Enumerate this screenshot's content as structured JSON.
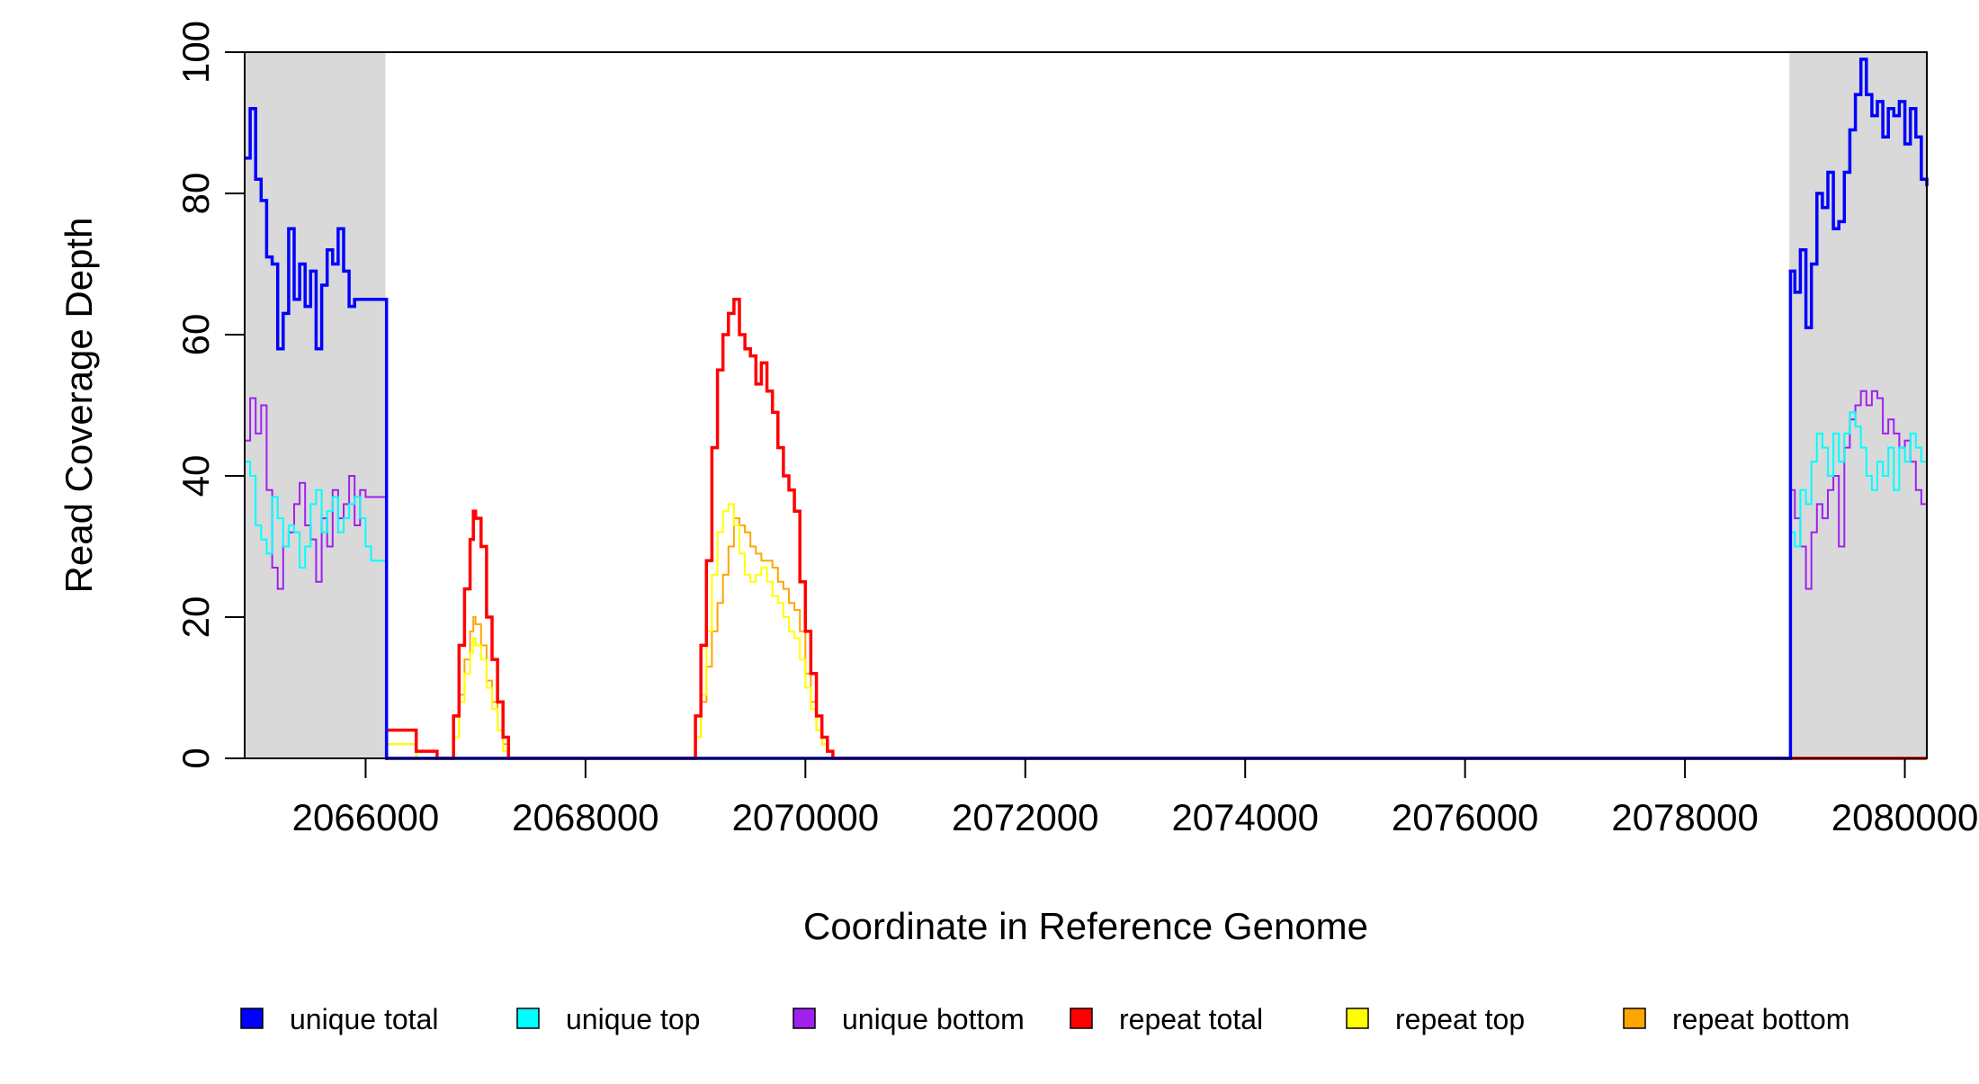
{
  "chart_data": {
    "type": "line",
    "title": "",
    "xlabel": "Coordinate in Reference Genome",
    "ylabel": "Read Coverage Depth",
    "xlim": [
      2064900,
      2080200
    ],
    "ylim": [
      0,
      100
    ],
    "x_ticks": [
      2066000,
      2068000,
      2070000,
      2072000,
      2074000,
      2076000,
      2078000,
      2080000
    ],
    "x_tick_labels": [
      "2066000",
      "2068000",
      "2070000",
      "2072000",
      "2074000",
      "2076000",
      "2078000",
      "2080000"
    ],
    "y_ticks": [
      0,
      20,
      40,
      60,
      80,
      100
    ],
    "y_tick_labels": [
      "0",
      "20",
      "40",
      "60",
      "80",
      "100"
    ],
    "grid": false,
    "legend_position": "bottom",
    "shaded_regions": [
      {
        "x_start": 2064900,
        "x_end": 2066180,
        "color": "#d9d9d9"
      },
      {
        "x_start": 2078950,
        "x_end": 2080200,
        "color": "#d9d9d9"
      }
    ],
    "series": [
      {
        "name": "unique total",
        "color": "#0000ff",
        "x": [
          2064900,
          2064950,
          2065000,
          2065050,
          2065100,
          2065150,
          2065200,
          2065250,
          2065300,
          2065350,
          2065400,
          2065450,
          2065500,
          2065550,
          2065600,
          2065650,
          2065700,
          2065750,
          2065800,
          2065850,
          2065900,
          2065950,
          2066000,
          2066050,
          2066100,
          2066150,
          2066180,
          2066190,
          2078950,
          2078960,
          2079000,
          2079050,
          2079100,
          2079150,
          2079200,
          2079250,
          2079300,
          2079350,
          2079400,
          2079450,
          2079500,
          2079550,
          2079600,
          2079650,
          2079700,
          2079750,
          2079800,
          2079850,
          2079900,
          2079950,
          2080000,
          2080050,
          2080100,
          2080150,
          2080200
        ],
        "values": [
          85,
          92,
          82,
          79,
          71,
          70,
          58,
          63,
          75,
          65,
          70,
          64,
          69,
          58,
          67,
          72,
          70,
          75,
          69,
          64,
          65,
          65,
          65,
          65,
          65,
          65,
          65,
          0,
          0,
          69,
          66,
          72,
          61,
          70,
          80,
          78,
          83,
          75,
          76,
          83,
          89,
          94,
          99,
          94,
          91,
          93,
          88,
          92,
          91,
          93,
          87,
          92,
          88,
          82,
          81
        ]
      },
      {
        "name": "unique top",
        "color": "#00ffff",
        "x": [
          2064900,
          2064950,
          2065000,
          2065050,
          2065100,
          2065150,
          2065200,
          2065250,
          2065300,
          2065350,
          2065400,
          2065450,
          2065500,
          2065550,
          2065600,
          2065650,
          2065700,
          2065750,
          2065800,
          2065850,
          2065900,
          2065950,
          2066000,
          2066050,
          2066100,
          2066150,
          2066180,
          2066190,
          2078950,
          2078960,
          2079000,
          2079050,
          2079100,
          2079150,
          2079200,
          2079250,
          2079300,
          2079350,
          2079400,
          2079450,
          2079500,
          2079550,
          2079600,
          2079650,
          2079700,
          2079750,
          2079800,
          2079850,
          2079900,
          2079950,
          2080000,
          2080050,
          2080100,
          2080150,
          2080200
        ],
        "values": [
          42,
          40,
          33,
          31,
          29,
          37,
          34,
          30,
          33,
          32,
          27,
          30,
          36,
          38,
          32,
          35,
          37,
          32,
          34,
          36,
          37,
          34,
          30,
          28,
          28,
          28,
          28,
          0,
          0,
          32,
          30,
          38,
          36,
          42,
          46,
          44,
          40,
          46,
          42,
          46,
          49,
          47,
          44,
          40,
          38,
          42,
          40,
          44,
          38,
          44,
          42,
          46,
          44,
          42,
          40
        ]
      },
      {
        "name": "unique bottom",
        "color": "#a020f0",
        "x": [
          2064900,
          2064950,
          2065000,
          2065050,
          2065100,
          2065150,
          2065200,
          2065250,
          2065300,
          2065350,
          2065400,
          2065450,
          2065500,
          2065550,
          2065600,
          2065650,
          2065700,
          2065750,
          2065800,
          2065850,
          2065900,
          2065950,
          2066000,
          2066050,
          2066100,
          2066150,
          2066180,
          2066190,
          2078950,
          2078960,
          2079000,
          2079050,
          2079100,
          2079150,
          2079200,
          2079250,
          2079300,
          2079350,
          2079400,
          2079450,
          2079500,
          2079550,
          2079600,
          2079650,
          2079700,
          2079750,
          2079800,
          2079850,
          2079900,
          2079950,
          2080000,
          2080050,
          2080100,
          2080150,
          2080200
        ],
        "values": [
          45,
          51,
          46,
          50,
          38,
          27,
          24,
          30,
          32,
          36,
          39,
          33,
          31,
          25,
          34,
          30,
          38,
          34,
          36,
          40,
          33,
          38,
          37,
          37,
          37,
          37,
          37,
          0,
          0,
          38,
          34,
          30,
          24,
          32,
          36,
          34,
          38,
          40,
          30,
          44,
          48,
          50,
          52,
          50,
          52,
          51,
          46,
          48,
          46,
          44,
          45,
          42,
          38,
          36,
          35
        ]
      },
      {
        "name": "repeat total",
        "color": "#ff0000",
        "x": [
          2066180,
          2066190,
          2066220,
          2066450,
          2066460,
          2066550,
          2066650,
          2066720,
          2066800,
          2066850,
          2066900,
          2066950,
          2066980,
          2067000,
          2067050,
          2067100,
          2067150,
          2067200,
          2067250,
          2067300,
          2067320,
          2068950,
          2069000,
          2069050,
          2069100,
          2069150,
          2069200,
          2069250,
          2069300,
          2069350,
          2069400,
          2069450,
          2069500,
          2069550,
          2069600,
          2069650,
          2069700,
          2069750,
          2069800,
          2069850,
          2069900,
          2069950,
          2070000,
          2070050,
          2070100,
          2070150,
          2070200,
          2070250,
          2070270,
          2070280,
          2080200
        ],
        "values": [
          0,
          4,
          4,
          4,
          1,
          1,
          0,
          0,
          6,
          16,
          24,
          31,
          35,
          34,
          30,
          20,
          14,
          8,
          3,
          0,
          0,
          0,
          6,
          16,
          28,
          44,
          55,
          60,
          63,
          65,
          60,
          58,
          57,
          53,
          56,
          52,
          49,
          44,
          40,
          38,
          35,
          25,
          18,
          12,
          6,
          3,
          1,
          0,
          0,
          0,
          0
        ]
      },
      {
        "name": "repeat top",
        "color": "#ffff00",
        "x": [
          2066180,
          2066190,
          2066220,
          2066450,
          2066460,
          2066550,
          2066650,
          2066720,
          2066800,
          2066850,
          2066900,
          2066950,
          2066980,
          2067000,
          2067050,
          2067100,
          2067150,
          2067200,
          2067250,
          2067300,
          2067320,
          2068950,
          2069000,
          2069050,
          2069100,
          2069150,
          2069200,
          2069250,
          2069300,
          2069350,
          2069400,
          2069450,
          2069500,
          2069550,
          2069600,
          2069650,
          2069700,
          2069750,
          2069800,
          2069850,
          2069900,
          2069950,
          2070000,
          2070050,
          2070100,
          2070150,
          2070200,
          2070250,
          2070270,
          2070280,
          2080200
        ],
        "values": [
          0,
          2,
          2,
          2,
          0,
          0,
          0,
          0,
          3,
          8,
          12,
          15,
          17,
          16,
          14,
          10,
          7,
          4,
          1,
          0,
          0,
          0,
          3,
          9,
          18,
          26,
          32,
          35,
          36,
          33,
          29,
          26,
          25,
          26,
          27,
          25,
          23,
          22,
          20,
          18,
          17,
          14,
          10,
          7,
          4,
          2,
          1,
          0,
          0,
          0,
          0
        ]
      },
      {
        "name": "repeat bottom",
        "color": "#ffa500",
        "x": [
          2066180,
          2066190,
          2066220,
          2066450,
          2066460,
          2066550,
          2066650,
          2066720,
          2066800,
          2066850,
          2066900,
          2066950,
          2066980,
          2067000,
          2067050,
          2067100,
          2067150,
          2067200,
          2067250,
          2067300,
          2067320,
          2068950,
          2069000,
          2069050,
          2069100,
          2069150,
          2069200,
          2069250,
          2069300,
          2069350,
          2069400,
          2069450,
          2069500,
          2069550,
          2069600,
          2069650,
          2069700,
          2069750,
          2069800,
          2069850,
          2069900,
          2069950,
          2070000,
          2070050,
          2070100,
          2070150,
          2070200,
          2070250,
          2070270,
          2070280,
          2080200
        ],
        "values": [
          0,
          2,
          2,
          2,
          0,
          0,
          0,
          0,
          3,
          9,
          14,
          18,
          20,
          19,
          16,
          11,
          8,
          4,
          2,
          0,
          0,
          0,
          3,
          8,
          13,
          18,
          22,
          26,
          30,
          34,
          33,
          32,
          30,
          29,
          28,
          28,
          27,
          25,
          24,
          22,
          21,
          18,
          12,
          8,
          4,
          2,
          1,
          0,
          0,
          0,
          0
        ]
      }
    ]
  }
}
